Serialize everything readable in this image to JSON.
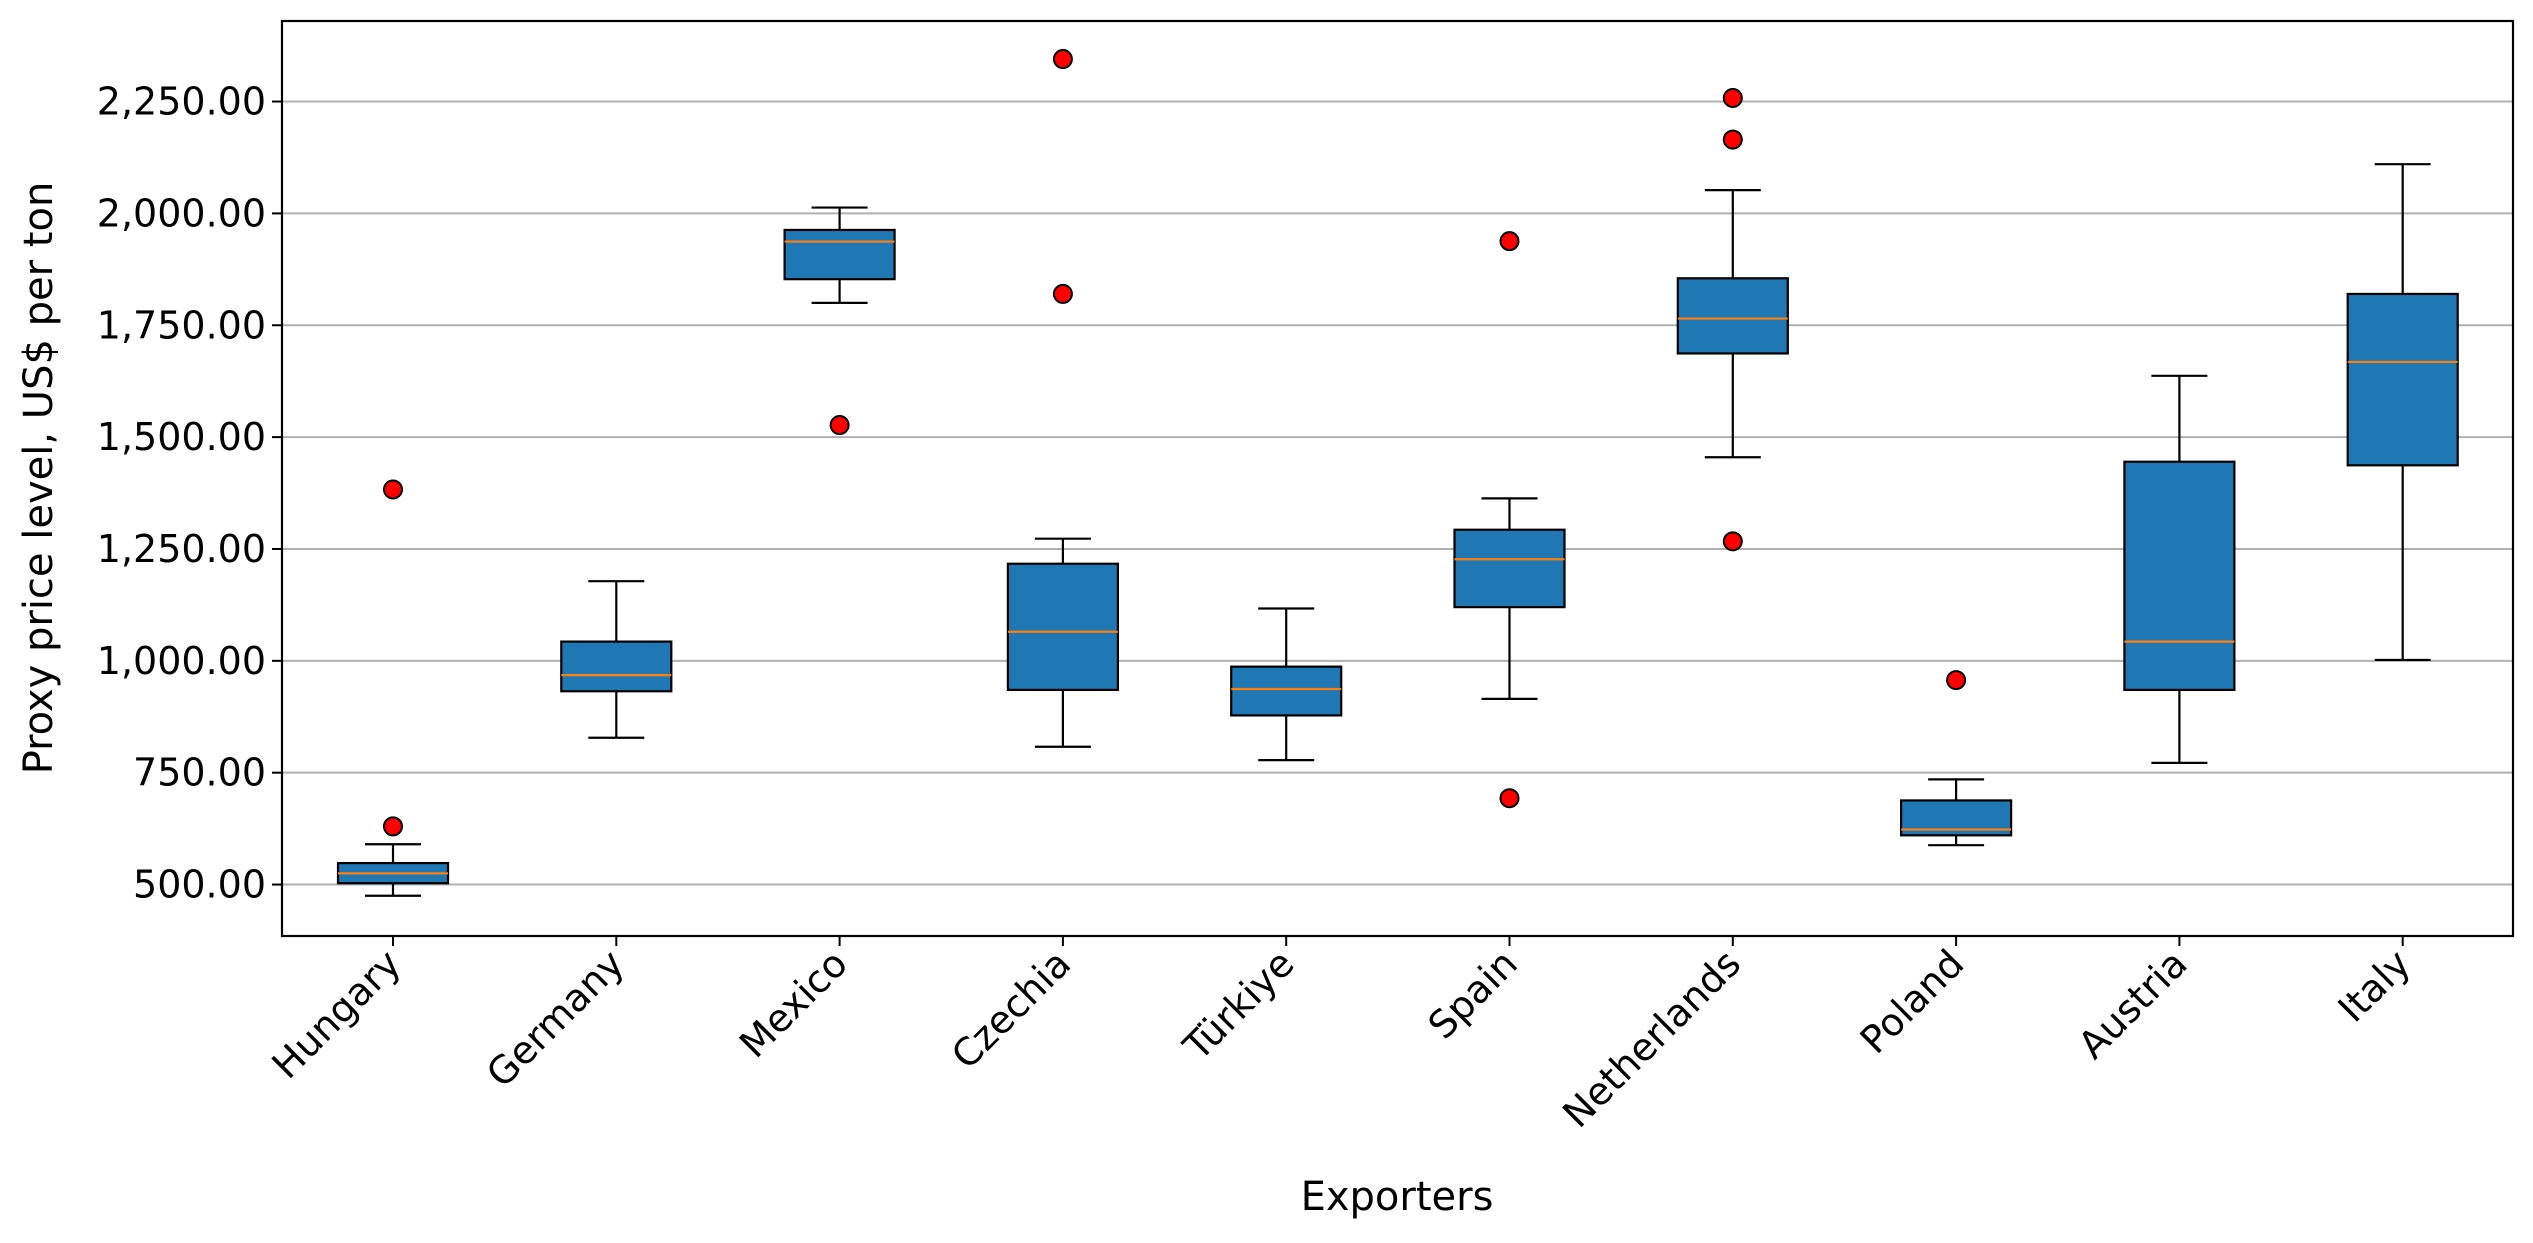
{
  "chart_data": {
    "type": "box",
    "title": "",
    "xlabel": "Exporters",
    "ylabel": "Proxy price level, US$ per ton",
    "ylim": [
      385,
      2430
    ],
    "yticks": [
      500,
      750,
      1000,
      1250,
      1500,
      1750,
      2000,
      2250
    ],
    "ytick_labels": [
      "500.00",
      "750.00",
      "1,000.00",
      "1,250.00",
      "1,500.00",
      "1,750.00",
      "2,000.00",
      "2,250.00"
    ],
    "grid": "horizontal",
    "box_color": "#1f77b4",
    "median_color": "#ff7f0e",
    "outlier_color": "#ff0000",
    "categories": [
      "Hungary",
      "Germany",
      "Mexico",
      "Czechia",
      "Türkiye",
      "Spain",
      "Netherlands",
      "Poland",
      "Austria",
      "Italy"
    ],
    "boxes": [
      {
        "label": "Hungary",
        "whisker_low": 475,
        "q1": 503,
        "median": 525,
        "q3": 548,
        "whisker_high": 590,
        "outliers": [
          630,
          1383
        ]
      },
      {
        "label": "Germany",
        "whisker_low": 828,
        "q1": 932,
        "median": 968,
        "q3": 1043,
        "whisker_high": 1178,
        "outliers": []
      },
      {
        "label": "Mexico",
        "whisker_low": 1800,
        "q1": 1853,
        "median": 1937,
        "q3": 1963,
        "whisker_high": 2013,
        "outliers": [
          1527
        ]
      },
      {
        "label": "Czechia",
        "whisker_low": 808,
        "q1": 935,
        "median": 1065,
        "q3": 1217,
        "whisker_high": 1273,
        "outliers": [
          1820,
          2345
        ]
      },
      {
        "label": "Türkiye",
        "whisker_low": 778,
        "q1": 878,
        "median": 937,
        "q3": 987,
        "whisker_high": 1117,
        "outliers": []
      },
      {
        "label": "Spain",
        "whisker_low": 915,
        "q1": 1120,
        "median": 1227,
        "q3": 1293,
        "whisker_high": 1363,
        "outliers": [
          693,
          1938
        ]
      },
      {
        "label": "Netherlands",
        "whisker_low": 1455,
        "q1": 1687,
        "median": 1765,
        "q3": 1855,
        "whisker_high": 2052,
        "outliers": [
          1267,
          2165,
          2258
        ]
      },
      {
        "label": "Poland",
        "whisker_low": 588,
        "q1": 610,
        "median": 623,
        "q3": 688,
        "whisker_high": 735,
        "outliers": [
          957
        ]
      },
      {
        "label": "Austria",
        "whisker_low": 772,
        "q1": 935,
        "median": 1043,
        "q3": 1445,
        "whisker_high": 1637,
        "outliers": []
      },
      {
        "label": "Italy",
        "whisker_low": 1002,
        "q1": 1437,
        "median": 1668,
        "q3": 1820,
        "whisker_high": 2110,
        "outliers": []
      }
    ]
  }
}
